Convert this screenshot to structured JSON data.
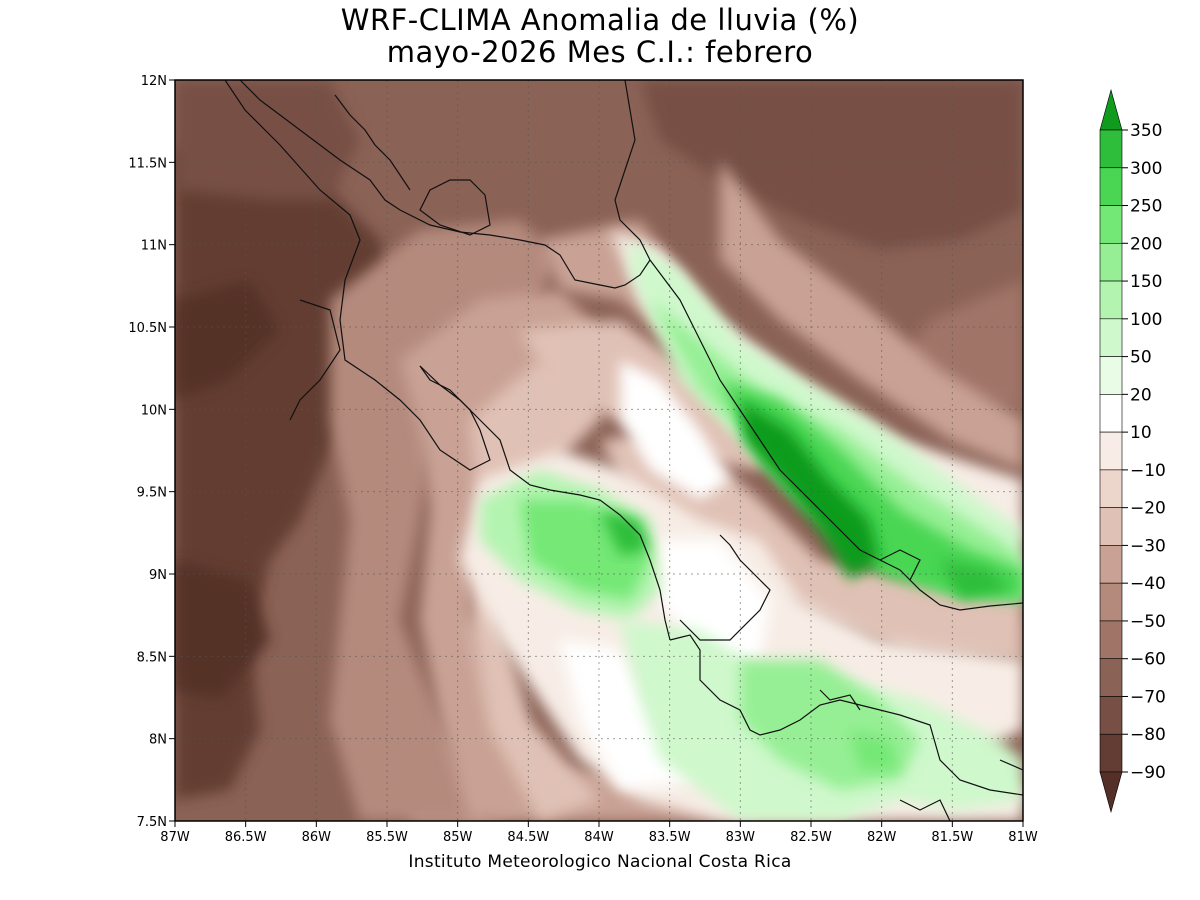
{
  "title": {
    "line1": "WRF-CLIMA Anomalia de lluvia (%)",
    "line2": "mayo-2026 Mes C.I.: febrero"
  },
  "credit": "Instituto Meteorologico Nacional Costa Rica",
  "map": {
    "lon_range": [
      -87,
      -81
    ],
    "lat_range": [
      7.5,
      12
    ],
    "lon_ticks": [
      "87W",
      "86.5W",
      "86W",
      "85.5W",
      "85W",
      "84.5W",
      "84W",
      "83.5W",
      "83W",
      "82.5W",
      "82W",
      "81.5W",
      "81W"
    ],
    "lat_ticks": [
      "12N",
      "11.5N",
      "11N",
      "10.5N",
      "10N",
      "9.5N",
      "9N",
      "8.5N",
      "8N",
      "7.5N"
    ],
    "grid": "dotted",
    "field": "precipitation anomaly (%)"
  },
  "colorbar": {
    "labels": [
      "350",
      "300",
      "250",
      "200",
      "150",
      "100",
      "50",
      "20",
      "10",
      "-10",
      "-20",
      "-30",
      "-40",
      "-50",
      "-60",
      "-70",
      "-80",
      "-90"
    ],
    "colors": [
      "#0f9b1e",
      "#2ebe3b",
      "#4ad653",
      "#74e876",
      "#96ef94",
      "#b4f4b1",
      "#cff8cc",
      "#e8fce6",
      "#ffffff",
      "#f7ede6",
      "#ecd5cb",
      "#e0c1b5",
      "#c9a295",
      "#b48a7d",
      "#a07467",
      "#8b6256",
      "#774f45",
      "#633d33",
      "#553028"
    ],
    "extend": "both"
  }
}
